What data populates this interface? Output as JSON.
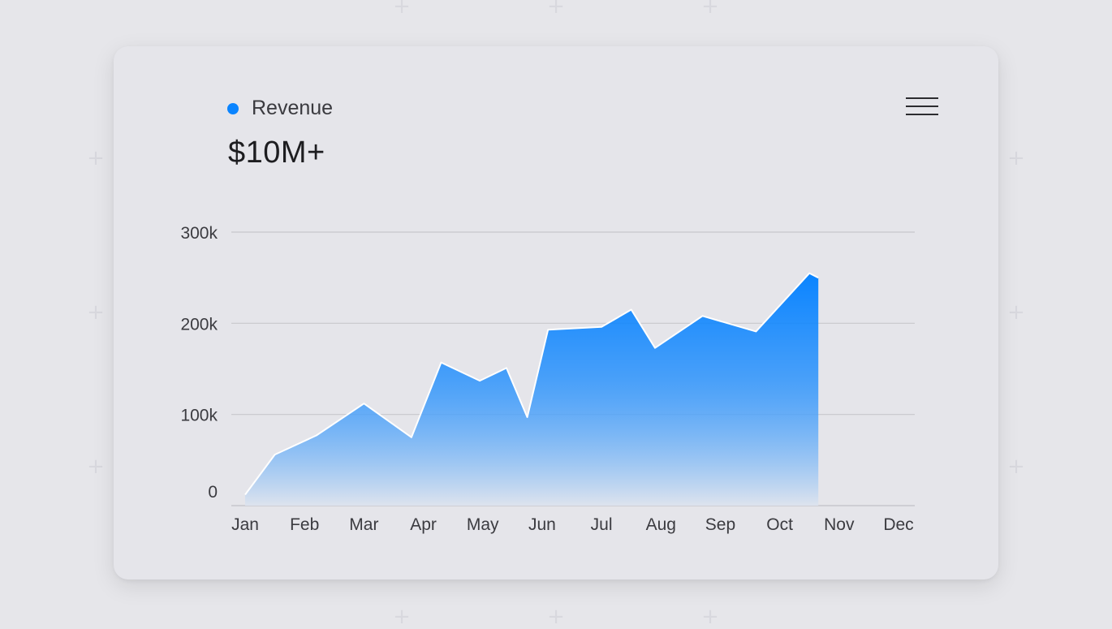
{
  "legend": {
    "label": "Revenue",
    "color": "#0a84ff"
  },
  "headline": "$10M+",
  "menu": {
    "icon": "hamburger-menu-icon"
  },
  "chart_data": {
    "type": "area",
    "title": "",
    "xlabel": "",
    "ylabel": "",
    "ylim": [
      0,
      300000
    ],
    "yticks": [
      {
        "value": 0,
        "label": "0"
      },
      {
        "value": 100000,
        "label": "100k"
      },
      {
        "value": 200000,
        "label": "200k"
      },
      {
        "value": 300000,
        "label": "300k"
      }
    ],
    "categories": [
      "Jan",
      "Feb",
      "Mar",
      "Apr",
      "May",
      "Jun",
      "Jul",
      "Aug",
      "Sep",
      "Oct",
      "Nov",
      "Dec"
    ],
    "grid": true,
    "colors": {
      "fill_top": "#0a84ff",
      "fill_bottom": "#dde3ee",
      "grid": "#c7c7cc",
      "stroke": "#ffffff"
    },
    "series": [
      {
        "name": "Revenue",
        "points": [
          {
            "x": 0.0,
            "y": 12000
          },
          {
            "x": 0.5,
            "y": 56000
          },
          {
            "x": 1.2,
            "y": 77000
          },
          {
            "x": 2.0,
            "y": 112000
          },
          {
            "x": 2.8,
            "y": 75000
          },
          {
            "x": 3.3,
            "y": 157000
          },
          {
            "x": 3.95,
            "y": 137000
          },
          {
            "x": 4.4,
            "y": 151000
          },
          {
            "x": 4.75,
            "y": 97000
          },
          {
            "x": 5.1,
            "y": 193000
          },
          {
            "x": 6.0,
            "y": 196000
          },
          {
            "x": 6.5,
            "y": 215000
          },
          {
            "x": 6.9,
            "y": 173000
          },
          {
            "x": 7.7,
            "y": 208000
          },
          {
            "x": 8.6,
            "y": 191000
          },
          {
            "x": 9.5,
            "y": 255000
          },
          {
            "x": 9.65,
            "y": 250000
          }
        ]
      }
    ]
  }
}
